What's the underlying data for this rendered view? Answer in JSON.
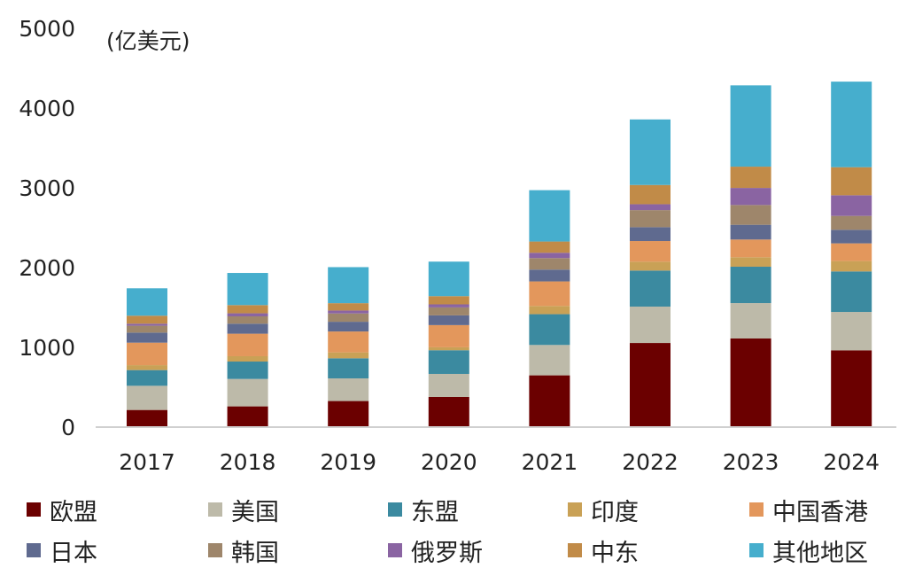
{
  "chart_data": {
    "type": "bar",
    "stacked": true,
    "title": "",
    "unit_label": "(亿美元)",
    "xlabel": "",
    "ylabel": "(亿美元)",
    "ylim": [
      0,
      5000
    ],
    "yticks": [
      0,
      1000,
      2000,
      3000,
      4000,
      5000
    ],
    "grid": false,
    "legend_position": "bottom",
    "categories": [
      "2017",
      "2018",
      "2019",
      "2020",
      "2021",
      "2022",
      "2023",
      "2024"
    ],
    "series": [
      {
        "name": "欧盟",
        "color": "#6b0000",
        "values": [
          215,
          260,
          327,
          378,
          649,
          1055,
          1111,
          963
        ]
      },
      {
        "name": "美国",
        "color": "#bdbaa9",
        "values": [
          303,
          344,
          284,
          289,
          381,
          456,
          444,
          481
        ]
      },
      {
        "name": "东盟",
        "color": "#3b8aa0",
        "values": [
          197,
          218,
          252,
          297,
          386,
          452,
          456,
          508
        ]
      },
      {
        "name": "印度",
        "color": "#c9a156",
        "values": [
          62,
          67,
          74,
          37,
          103,
          111,
          119,
          130
        ]
      },
      {
        "name": "中国香港",
        "color": "#e3975c",
        "values": [
          282,
          282,
          262,
          278,
          308,
          259,
          222,
          222
        ]
      },
      {
        "name": "日本",
        "color": "#5f6a8f",
        "values": [
          126,
          126,
          122,
          122,
          148,
          174,
          185,
          170
        ]
      },
      {
        "name": "韩国",
        "color": "#9e866b",
        "values": [
          86,
          92,
          104,
          100,
          144,
          214,
          248,
          174
        ]
      },
      {
        "name": "俄罗斯",
        "color": "#8a64a2",
        "values": [
          26,
          38,
          37,
          38,
          67,
          74,
          214,
          259
        ]
      },
      {
        "name": "中东",
        "color": "#c18b48",
        "values": [
          100,
          103,
          92,
          103,
          141,
          241,
          267,
          352
        ]
      },
      {
        "name": "其他地区",
        "color": "#46aecd",
        "values": [
          344,
          403,
          452,
          433,
          644,
          822,
          1019,
          1073
        ]
      }
    ]
  }
}
